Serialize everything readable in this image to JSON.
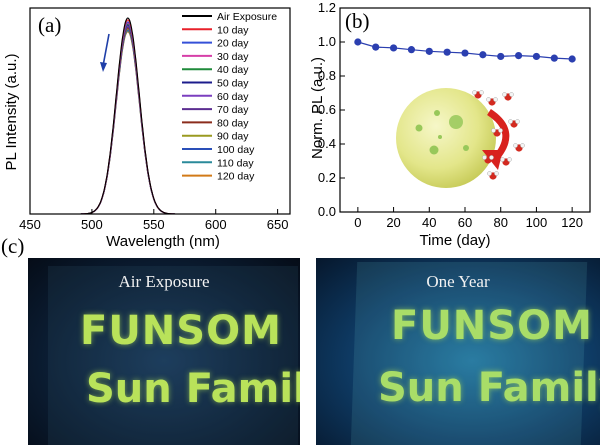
{
  "panel_labels": {
    "a": "(a)",
    "b": "(b)",
    "c": "(c)"
  },
  "chart_data": [
    {
      "type": "line",
      "panel": "(a)",
      "xlabel": "Wavelength (nm)",
      "ylabel": "PL Intensity (a.u.)",
      "xlim": [
        450,
        660
      ],
      "xticks": [
        450,
        500,
        550,
        600,
        650
      ],
      "peak_nm": 529,
      "fwhm_nm": 22,
      "legend_position": "top-right",
      "series": [
        {
          "name": "Air Exposure",
          "color": "#000000",
          "peak": 1.0
        },
        {
          "name": "10 day",
          "color": "#e8202a",
          "peak": 0.99
        },
        {
          "name": "20 day",
          "color": "#3550d8",
          "peak": 0.98
        },
        {
          "name": "30 day",
          "color": "#d63fa8",
          "peak": 0.975
        },
        {
          "name": "40 day",
          "color": "#1f8a3a",
          "peak": 0.97
        },
        {
          "name": "50 day",
          "color": "#1c1c8c",
          "peak": 0.965
        },
        {
          "name": "60 day",
          "color": "#7b3fbf",
          "peak": 0.96
        },
        {
          "name": "70 day",
          "color": "#5b2d91",
          "peak": 0.955
        },
        {
          "name": "80 day",
          "color": "#8b2c1c",
          "peak": 0.95
        },
        {
          "name": "90 day",
          "color": "#9a9a20",
          "peak": 0.945
        },
        {
          "name": "100 day",
          "color": "#2a4fb8",
          "peak": 0.94
        },
        {
          "name": "110 day",
          "color": "#2a8a9a",
          "peak": 0.935
        },
        {
          "name": "120 day",
          "color": "#d27a18",
          "peak": 0.93
        }
      ]
    },
    {
      "type": "line",
      "panel": "(b)",
      "xlabel": "Time (day)",
      "ylabel": "Norm. PL (a.u.)",
      "xlim": [
        -10,
        130
      ],
      "ylim": [
        0.0,
        1.2
      ],
      "xticks": [
        0,
        20,
        40,
        60,
        80,
        100,
        120
      ],
      "yticks": [
        0.0,
        0.2,
        0.4,
        0.6,
        0.8,
        1.0,
        1.2
      ],
      "grid": false,
      "series": [
        {
          "color": "#2b3fb0",
          "x": [
            0,
            10,
            20,
            30,
            40,
            50,
            60,
            70,
            80,
            90,
            100,
            110,
            120
          ],
          "y": [
            1.0,
            0.97,
            0.965,
            0.955,
            0.945,
            0.94,
            0.935,
            0.925,
            0.915,
            0.92,
            0.915,
            0.905,
            0.9
          ]
        }
      ]
    }
  ],
  "photos": [
    {
      "caption": "Air Exposure",
      "line1": "FUNSOM",
      "line2": "Sun Family"
    },
    {
      "caption": "One Year",
      "line1": "FUNSOM",
      "line2": "Sun Family"
    }
  ]
}
